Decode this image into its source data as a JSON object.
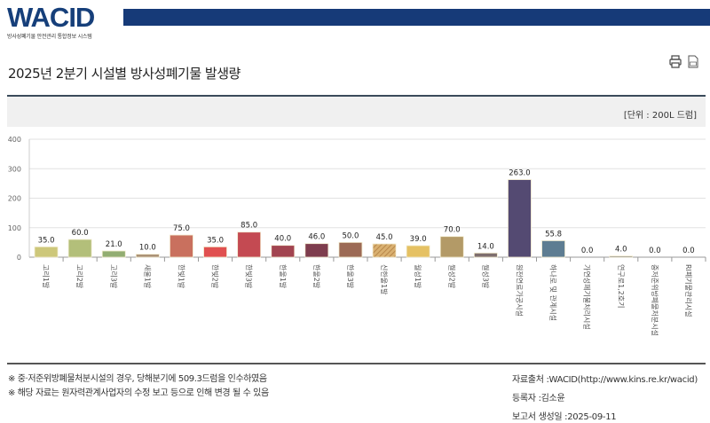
{
  "header": {
    "logo": "WACID",
    "logo_subtitle": "방사성폐기물 안전관리 통합정보 시스템",
    "title": "2025년 2분기 시설별 방사성폐기물 발생량",
    "unit": "[단위 : 200L 드럼]",
    "icons": [
      "print-icon",
      "pdf-icon"
    ]
  },
  "chart_data": {
    "type": "bar",
    "title": "2025년 2분기 시설별 방사성폐기물 발생량",
    "ylabel": "200L 드럼",
    "xlabel": "",
    "ylim": [
      0,
      400
    ],
    "yticks": [
      "0",
      "100",
      "200",
      "300",
      "400"
    ],
    "grid": true,
    "categories": [
      "고리1발",
      "고리2발",
      "고리3발",
      "새울1발",
      "한빛1발",
      "한빛2발",
      "한빛3발",
      "한울1발",
      "한울2발",
      "한울3발",
      "신한울1발",
      "월성1발",
      "월성2발",
      "월성3발",
      "원전연료가공시설",
      "하나로 및 관계시설",
      "가연성폐기물처리시설",
      "연구로1,2호기",
      "중저준위방폐물처분시설",
      "RI폐기물관리시설"
    ],
    "values": [
      35.0,
      60.0,
      21.0,
      10.0,
      75.0,
      35.0,
      85.0,
      40.0,
      46.0,
      50.0,
      45.0,
      39.0,
      70.0,
      14.0,
      263.0,
      55.8,
      0.0,
      4.0,
      0.0,
      0.0
    ],
    "labels": [
      "35.0",
      "60.0",
      "21.0",
      "10.0",
      "75.0",
      "35.0",
      "85.0",
      "40.0",
      "46.0",
      "50.0",
      "45.0",
      "39.0",
      "70.0",
      "14.0",
      "263.0",
      "55.8",
      "0.0",
      "4.0",
      "0.0",
      "0.0"
    ],
    "colors": [
      "#cdc77a",
      "#b3bf7a",
      "#92ad72",
      "#a98f74",
      "#c9705e",
      "#e05050",
      "#c44a52",
      "#a24450",
      "#7e3d4e",
      "#9c6a55",
      "#c89a5e",
      "#e5c163",
      "#b39a67",
      "#7e6e6e",
      "#544a72",
      "#5e7d92",
      "#aaaaaa",
      "#777777",
      "#aaaaaa",
      "#aaaaaa"
    ]
  },
  "footer": {
    "notes": [
      "※ 중·저준위방폐물처분시설의 경우, 당해분기에 509.3드럼을 인수하였음",
      "※ 해당 자료는 원자력관계사업자의 수정 보고 등으로 인해 변경 될 수 있음"
    ],
    "source": "자료출처 :WACID(http://www.kins.re.kr/wacid)",
    "registrant": "등록자 :김소윤",
    "report_date": "보고서 생성일 :2025-09-11"
  }
}
